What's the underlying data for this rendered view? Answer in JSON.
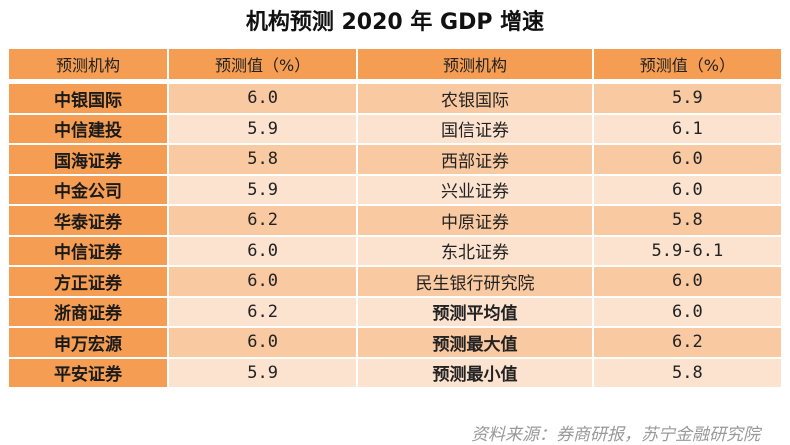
{
  "title": "机构预测 2020 年 GDP 增速",
  "headers": [
    "预测机构",
    "预测值（%）",
    "预测机构",
    "预测值（%）"
  ],
  "rows": [
    [
      "中银国际",
      "6.0",
      "农银国际",
      "5.9"
    ],
    [
      "中信建投",
      "5.9",
      "国信证券",
      "6.1"
    ],
    [
      "国海证券",
      "5.8",
      "西部证券",
      "6.0"
    ],
    [
      "中金公司",
      "5.9",
      "兴业证券",
      "6.0"
    ],
    [
      "华泰证券",
      "6.2",
      "中原证券",
      "5.8"
    ],
    [
      "中信证券",
      "6.0",
      "东北证券",
      "5.9-6.1"
    ],
    [
      "方正证券",
      "6.0",
      "民生银行研究院",
      "6.0"
    ],
    [
      "浙商证券",
      "6.2",
      "预测平均值",
      "6.0"
    ],
    [
      "申万宏源",
      "6.0",
      "预测最大值",
      "6.2"
    ],
    [
      "平安证券",
      "5.9",
      "预测最小值",
      "5.8"
    ]
  ],
  "source": "资料来源：券商研报，苏宁金融研究院"
}
